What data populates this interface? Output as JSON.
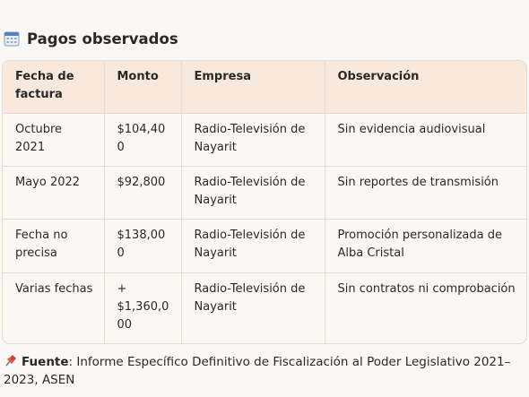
{
  "header": {
    "title": "Pagos observados"
  },
  "table": {
    "columns": [
      "Fecha de factura",
      "Monto",
      "Empresa",
      "Observación"
    ],
    "rows": [
      [
        "Octubre 2021",
        "$104,400",
        "Radio-Televisión de Nayarit",
        "Sin evidencia audiovisual"
      ],
      [
        "Mayo 2022",
        "$92,800",
        "Radio-Televisión de Nayarit",
        "Sin reportes de transmisión"
      ],
      [
        "Fecha no precisa",
        "$138,000",
        "Radio-Televisión de Nayarit",
        "Promoción personalizada de Alba Cristal"
      ],
      [
        "Varias fechas",
        "+ $1,360,000",
        "Radio-Televisión de Nayarit",
        "Sin contratos ni comprobación"
      ]
    ]
  },
  "source": {
    "label": "Fuente",
    "text": ": Informe Específico Definitivo de Fiscalización al Poder Legislativo 2021–2023, ASEN"
  }
}
